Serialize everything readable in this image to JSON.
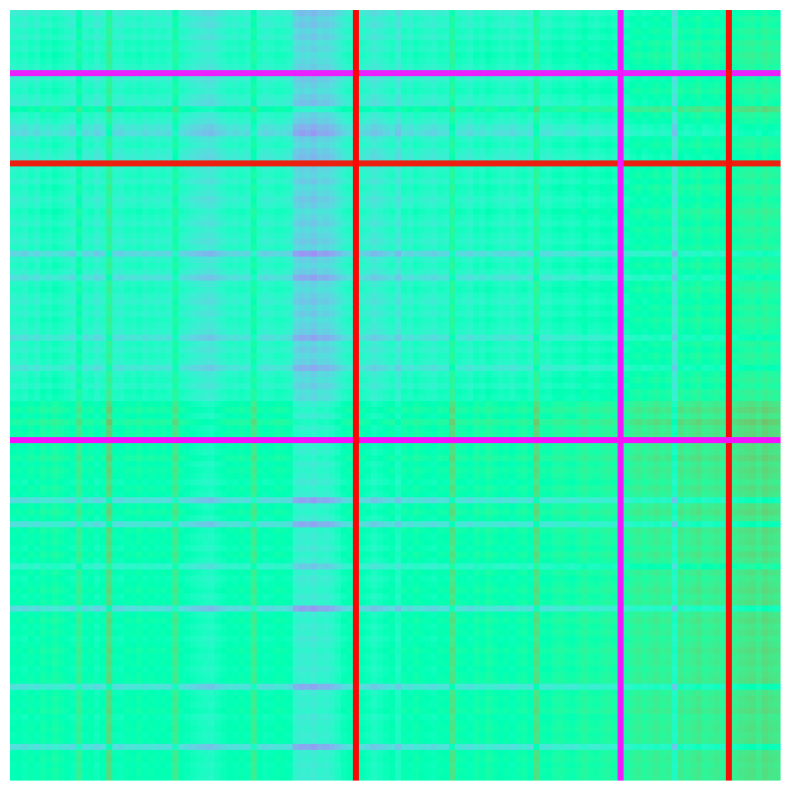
{
  "chart_data": {
    "type": "heatmap",
    "title": "",
    "xlabel": "",
    "ylabel": "",
    "n_rows": 128,
    "n_cols": 128,
    "colormap": "rainbow",
    "value_range": [
      0,
      1
    ],
    "axes_visible": false,
    "colorbar": false,
    "profile": [
      0.35,
      0.42,
      0.38,
      0.45,
      0.4,
      0.48,
      0.44,
      0.5,
      0.46,
      0.42,
      0.04,
      0.38,
      0.43,
      0.47,
      0.4,
      0.36,
      0.62,
      0.44,
      0.39,
      0.3,
      0.25,
      0.41,
      0.45,
      0.38,
      0.34,
      0.96,
      0.42,
      0.46,
      0.4,
      0.48,
      0.44,
      0.38,
      0.42,
      0.5,
      0.45,
      0.4,
      0.47,
      0.43,
      0.39,
      0.45,
      0.22,
      0.41,
      0.46,
      0.4,
      0.27,
      0.44,
      0.48,
      0.42,
      0.38,
      0.45,
      0.4,
      0.47,
      0.43,
      0.4,
      0.28,
      0.45,
      0.4,
      0.46,
      0.42,
      0.3,
      0.44,
      0.48,
      0.42,
      0.5,
      0.47,
      0.6,
      0.66,
      0.58,
      0.7,
      0.62,
      0.65,
      0.02,
      0.62,
      0.6,
      0.66,
      0.58,
      0.63,
      0.6,
      0.55,
      0.62,
      0.58,
      0.26,
      0.6,
      0.64,
      0.57,
      0.28,
      0.62,
      0.58,
      0.6,
      0.55,
      0.62,
      0.57,
      0.4,
      0.6,
      0.55,
      0.58,
      0.62,
      0.56,
      0.6,
      0.25,
      0.58,
      0.62,
      0.57,
      0.6,
      0.55,
      0.58,
      0.62,
      0.58,
      0.6,
      0.56,
      0.59,
      0.61,
      0.28,
      0.57,
      0.6,
      0.58,
      0.62,
      0.55,
      0.58,
      0.6,
      0.57,
      0.59,
      0.27,
      0.58,
      0.6,
      0.57,
      0.59,
      0.58
    ],
    "col_profile": [
      0.4,
      0.42,
      0.38,
      0.45,
      0.4,
      0.48,
      0.44,
      0.5,
      0.46,
      0.42,
      0.38,
      0.62,
      0.4,
      0.44,
      0.36,
      0.42,
      0.75,
      0.4,
      0.38,
      0.44,
      0.42,
      0.46,
      0.4,
      0.44,
      0.41,
      0.43,
      0.4,
      0.66,
      0.42,
      0.38,
      0.35,
      0.32,
      0.3,
      0.28,
      0.34,
      0.38,
      0.42,
      0.4,
      0.44,
      0.4,
      0.64,
      0.42,
      0.38,
      0.4,
      0.44,
      0.42,
      0.4,
      0.22,
      0.18,
      0.2,
      0.16,
      0.22,
      0.2,
      0.24,
      0.3,
      0.38,
      0.42,
      0.99,
      0.4,
      0.36,
      0.3,
      0.34,
      0.38,
      0.42,
      0.3,
      0.44,
      0.4,
      0.46,
      0.42,
      0.4,
      0.38,
      0.44,
      0.42,
      0.7,
      0.46,
      0.44,
      0.4,
      0.48,
      0.44,
      0.5,
      0.46,
      0.42,
      0.44,
      0.4,
      0.46,
      0.48,
      0.42,
      0.72,
      0.46,
      0.44,
      0.5,
      0.52,
      0.48,
      0.46,
      0.5,
      0.56,
      0.5,
      0.48,
      0.52,
      0.54,
      0.5,
      0.03,
      0.52,
      0.58,
      0.62,
      0.56,
      0.6,
      0.64,
      0.58,
      0.62,
      0.3,
      0.66,
      0.6,
      0.64,
      0.68,
      0.6,
      0.62,
      0.66,
      0.6,
      0.98,
      0.64,
      0.68,
      0.7,
      0.72,
      0.66,
      0.74,
      0.7,
      0.68
    ]
  }
}
